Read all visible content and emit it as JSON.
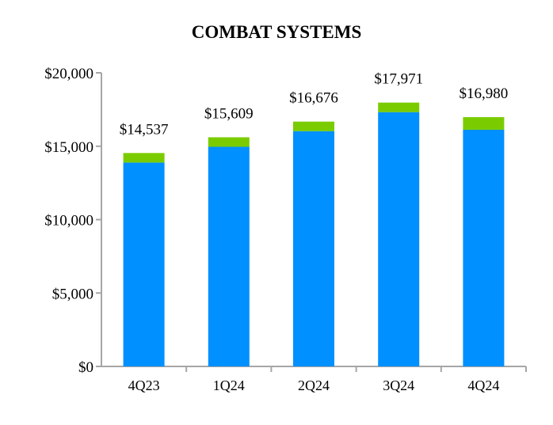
{
  "chart_data": {
    "type": "bar",
    "stacked": true,
    "title": "COMBAT SYSTEMS",
    "xlabel": "",
    "ylabel": "",
    "categories": [
      "4Q23",
      "1Q24",
      "2Q24",
      "3Q24",
      "4Q24"
    ],
    "series": [
      {
        "values": [
          13887,
          14959,
          16026,
          17321,
          16120
        ],
        "color": "#0090FF"
      },
      {
        "values": [
          650,
          650,
          650,
          650,
          860
        ],
        "color": "#7ACC00"
      }
    ],
    "totals_labels": [
      "$14,537",
      "$15,609",
      "$16,676",
      "$17,971",
      "$16,980"
    ],
    "totals": [
      14537,
      15609,
      16676,
      17971,
      16980
    ],
    "ylim": [
      0,
      20000
    ],
    "yticks": [
      0,
      5000,
      10000,
      15000,
      20000
    ],
    "ytick_labels": [
      "$0",
      "$5,000",
      "$10,000",
      "$15,000",
      "$20,000"
    ],
    "grid": false,
    "legend": "none",
    "axis_color": "#A6A6A6"
  }
}
